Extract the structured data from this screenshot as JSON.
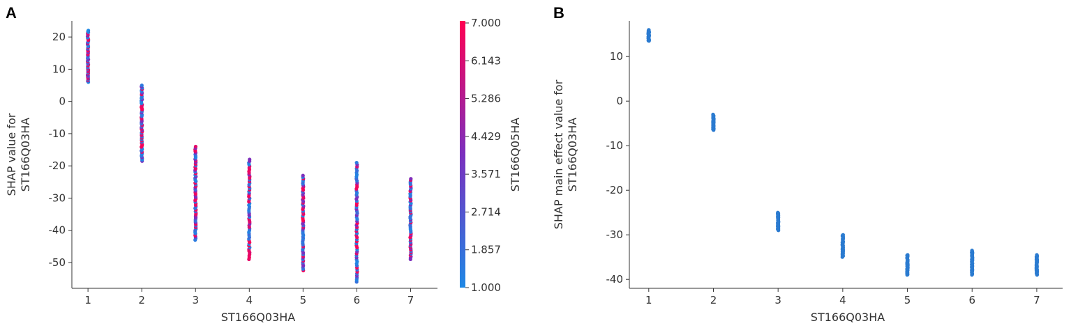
{
  "panels": {
    "a": {
      "letter": "A",
      "xlabel": "ST166Q03HA",
      "ylabel_line1": "SHAP value for",
      "ylabel_line2": "ST166Q03HA",
      "colorbar_label": "ST166Q05HA",
      "colorbar_ticks": [
        "7.000",
        "6.143",
        "5.286",
        "4.429",
        "3.571",
        "2.714",
        "1.857",
        "1.000"
      ]
    },
    "b": {
      "letter": "B",
      "xlabel": "ST166Q03HA",
      "ylabel_line1": "SHAP main effect value for",
      "ylabel_line2": "ST166Q03HA"
    }
  },
  "colors": {
    "low": "#1e88e5",
    "mid": "#7b2fbe",
    "high": "#ff0052",
    "main_effect": "#2b7bd0",
    "axis": "#333333"
  },
  "chart_data": [
    {
      "type": "scatter",
      "xlabel": "ST166Q03HA",
      "ylabel": "SHAP value for ST166Q03HA",
      "x_ticks": [
        1,
        2,
        3,
        4,
        5,
        6,
        7
      ],
      "y_ticks": [
        20,
        10,
        0,
        -10,
        -20,
        -30,
        -40,
        -50
      ],
      "xlim": [
        0.7,
        7.5
      ],
      "ylim": [
        -58,
        25
      ],
      "color_feature": "ST166Q05HA",
      "color_range": [
        1.0,
        7.0
      ],
      "points_by_x": [
        {
          "x": 1,
          "y_min": 6,
          "y_max": 22
        },
        {
          "x": 2,
          "y_min": -18.5,
          "y_max": 5
        },
        {
          "x": 3,
          "y_min": -43,
          "y_max": -14
        },
        {
          "x": 4,
          "y_min": -49,
          "y_max": -18
        },
        {
          "x": 5,
          "y_min": -52.5,
          "y_max": -23
        },
        {
          "x": 6,
          "y_min": -56,
          "y_max": -19
        },
        {
          "x": 7,
          "y_min": -49,
          "y_max": -24
        }
      ]
    },
    {
      "type": "scatter",
      "xlabel": "ST166Q03HA",
      "ylabel": "SHAP main effect value for ST166Q03HA",
      "x_ticks": [
        1,
        2,
        3,
        4,
        5,
        6,
        7
      ],
      "y_ticks": [
        10,
        0,
        -10,
        -20,
        -30,
        -40
      ],
      "xlim": [
        0.7,
        7.4
      ],
      "ylim": [
        -42,
        18
      ],
      "points_by_x": [
        {
          "x": 1,
          "y_min": 13.5,
          "y_max": 16
        },
        {
          "x": 2,
          "y_min": -6.5,
          "y_max": -3
        },
        {
          "x": 3,
          "y_min": -29,
          "y_max": -25
        },
        {
          "x": 4,
          "y_min": -35,
          "y_max": -30
        },
        {
          "x": 5,
          "y_min": -39,
          "y_max": -34.5
        },
        {
          "x": 6,
          "y_min": -39,
          "y_max": -33.5
        },
        {
          "x": 7,
          "y_min": -39,
          "y_max": -34.5
        }
      ]
    }
  ]
}
